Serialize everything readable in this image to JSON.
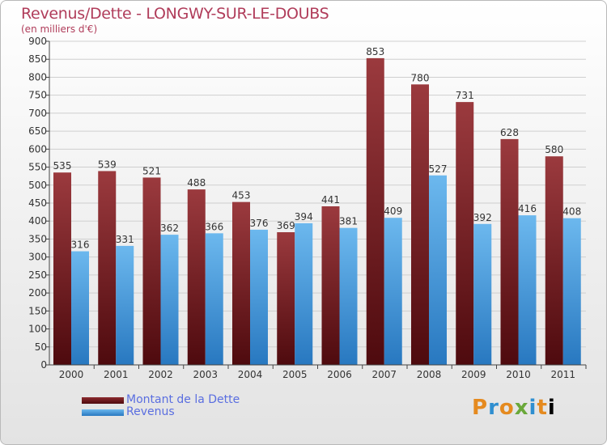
{
  "title": "Revenus/Dette - LONGWY-SUR-LE-DOUBS",
  "subtitle": "(en milliers d'€)",
  "logo": [
    "P",
    "r",
    "o",
    "x",
    "i",
    "t",
    "i"
  ],
  "chart_data": {
    "type": "bar",
    "categories": [
      "2000",
      "2001",
      "2002",
      "2003",
      "2004",
      "2005",
      "2006",
      "2007",
      "2008",
      "2009",
      "2010",
      "2011"
    ],
    "series": [
      {
        "name": "Montant de la Dette",
        "color": "#8b2a2e",
        "values": [
          535,
          539,
          521,
          488,
          453,
          369,
          441,
          853,
          780,
          731,
          628,
          580
        ]
      },
      {
        "name": "Revenus",
        "color": "#4fa4e4",
        "values": [
          316,
          331,
          362,
          366,
          376,
          394,
          381,
          409,
          527,
          392,
          416,
          408
        ]
      }
    ],
    "ylim": [
      0,
      900
    ],
    "yticks": [
      0,
      50,
      100,
      150,
      200,
      250,
      300,
      350,
      400,
      450,
      500,
      550,
      600,
      650,
      700,
      750,
      800,
      850,
      900
    ],
    "grid": true,
    "legend": "bottom-left"
  }
}
